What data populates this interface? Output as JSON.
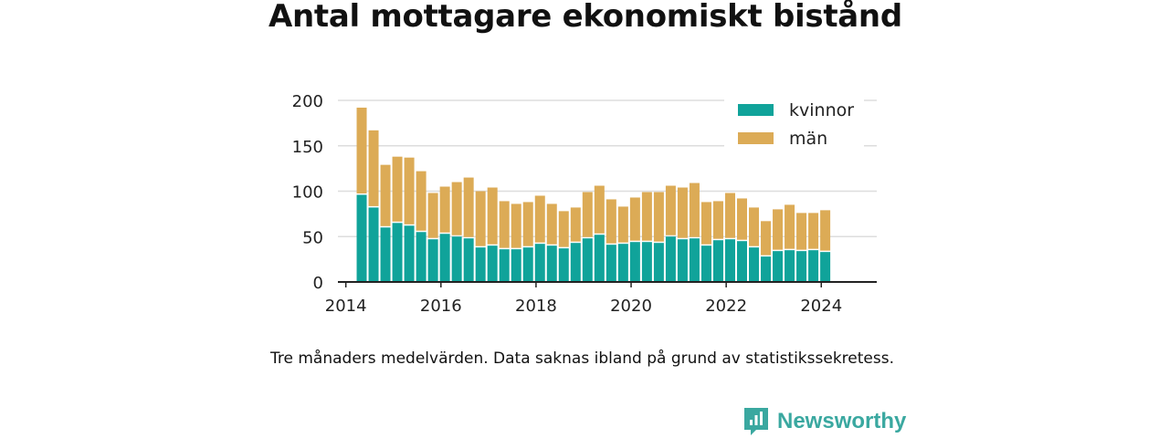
{
  "title": "Antal mottagare ekonomiskt bistånd",
  "caption": "Tre månaders medelvärden. Data saknas ibland på grund av statistikssekretess.",
  "brand": {
    "name": "Newsworthy",
    "icon": "newsworthy-logo-icon"
  },
  "colors": {
    "kvinnor": "#10a39a",
    "man": "#dcab56",
    "grid": "#dddddd",
    "axis": "#222222",
    "brand": "#3aa8a0"
  },
  "chart_data": {
    "type": "bar",
    "stacked": true,
    "x_ticks": [
      "2014",
      "2016",
      "2018",
      "2020",
      "2022",
      "2024"
    ],
    "y_ticks": [
      "0",
      "50",
      "100",
      "150",
      "200"
    ],
    "ylim": [
      0,
      200
    ],
    "xlim": [
      "2013-11",
      "2025-03"
    ],
    "grid": true,
    "legend_position": "top-right",
    "x": [
      "2014-05",
      "2014-08",
      "2014-11",
      "2015-02",
      "2015-05",
      "2015-08",
      "2015-11",
      "2016-02",
      "2016-05",
      "2016-08",
      "2016-11",
      "2017-02",
      "2017-05",
      "2017-08",
      "2017-11",
      "2018-02",
      "2018-05",
      "2018-08",
      "2018-11",
      "2019-02",
      "2019-05",
      "2019-08",
      "2019-11",
      "2020-02",
      "2020-05",
      "2020-08",
      "2020-11",
      "2021-02",
      "2021-05",
      "2021-08",
      "2021-11",
      "2022-02",
      "2022-05",
      "2022-08",
      "2022-11",
      "2023-02",
      "2023-05",
      "2023-08",
      "2023-11",
      "2024-02"
    ],
    "series": [
      {
        "name": "kvinnor",
        "values": [
          96,
          82,
          60,
          65,
          62,
          55,
          47,
          53,
          50,
          48,
          38,
          40,
          36,
          36,
          38,
          42,
          40,
          37,
          43,
          48,
          52,
          41,
          42,
          44,
          44,
          43,
          50,
          47,
          48,
          40,
          46,
          47,
          45,
          38,
          28,
          34,
          35,
          34,
          35,
          33
        ]
      },
      {
        "name": "män",
        "values": [
          96,
          85,
          69,
          73,
          75,
          67,
          51,
          52,
          60,
          67,
          62,
          64,
          53,
          50,
          50,
          53,
          46,
          41,
          39,
          51,
          54,
          50,
          41,
          49,
          55,
          56,
          56,
          57,
          61,
          48,
          43,
          51,
          47,
          44,
          39,
          46,
          50,
          42,
          41,
          46
        ]
      }
    ]
  }
}
